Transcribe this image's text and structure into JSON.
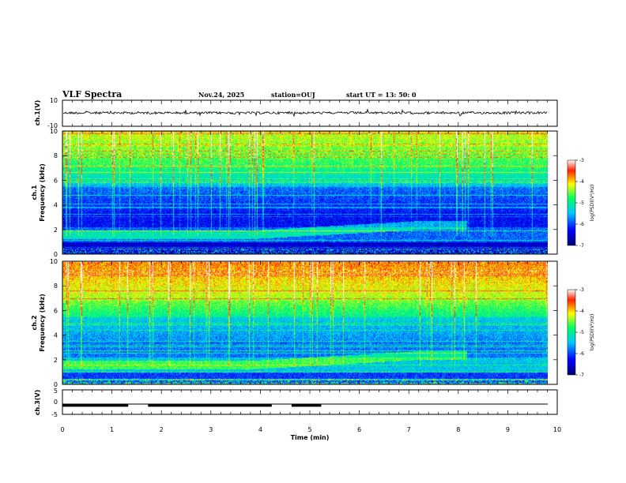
{
  "header": {
    "title": "VLF Spectra",
    "date": "Nov.24, 2025",
    "station": "station=OUJ",
    "start": "start  UT  =   13: 50: 0"
  },
  "colors": {
    "bg": "#000080",
    "band_blue": "#0000ff",
    "cyan": "#00c8ff",
    "green": "#00ff64",
    "yellow": "#ffff00",
    "red": "#ff0000"
  },
  "chart_data": [
    {
      "type": "line",
      "name": "ch1-waveform",
      "ylabel": "ch.1(V)",
      "ylim": [
        -10,
        10
      ],
      "yticks": [
        "10",
        "-10"
      ],
      "xlim": [
        0,
        10
      ]
    },
    {
      "type": "heatmap",
      "name": "ch1-spectrogram",
      "ylabel_top": "ch.1",
      "ylabel": "Frequency (kHz)",
      "ylim": [
        0,
        10
      ],
      "yticks": [
        "0",
        "2",
        "4",
        "6",
        "8",
        "10"
      ],
      "xlim": [
        0,
        10
      ],
      "colorbar": {
        "label": "log(PSD)(V²/Hz)",
        "ticks": [
          "-3",
          "-4",
          "-5",
          "-6",
          "-7"
        ],
        "range": [
          -7,
          -3
        ]
      }
    },
    {
      "type": "heatmap",
      "name": "ch2-spectrogram",
      "ylabel_top": "ch.2",
      "ylabel": "Frequency (kHz)",
      "ylim": [
        0,
        10
      ],
      "yticks": [
        "0",
        "2",
        "4",
        "6",
        "8",
        "10"
      ],
      "xlim": [
        0,
        10
      ],
      "colorbar": {
        "label": "log(PSD)(V²/Hz)",
        "ticks": [
          "-3",
          "-4",
          "-5",
          "-6",
          "-7"
        ],
        "range": [
          -7,
          -3
        ]
      }
    },
    {
      "type": "line",
      "name": "ch3-trace",
      "ylabel": "ch.3(V)",
      "ylim": [
        -5,
        5
      ],
      "yticks": [
        "5",
        "0",
        "-5"
      ],
      "xlim": [
        0,
        10
      ],
      "xlabel": "Time (min)",
      "xticks": [
        "0",
        "1",
        "2",
        "3",
        "4",
        "5",
        "6",
        "7",
        "8",
        "9",
        "10"
      ],
      "segments": [
        [
          0,
          1.33
        ],
        [
          1.73,
          4.23
        ],
        [
          4.63,
          5.23
        ]
      ],
      "baseline": -1.4
    }
  ]
}
